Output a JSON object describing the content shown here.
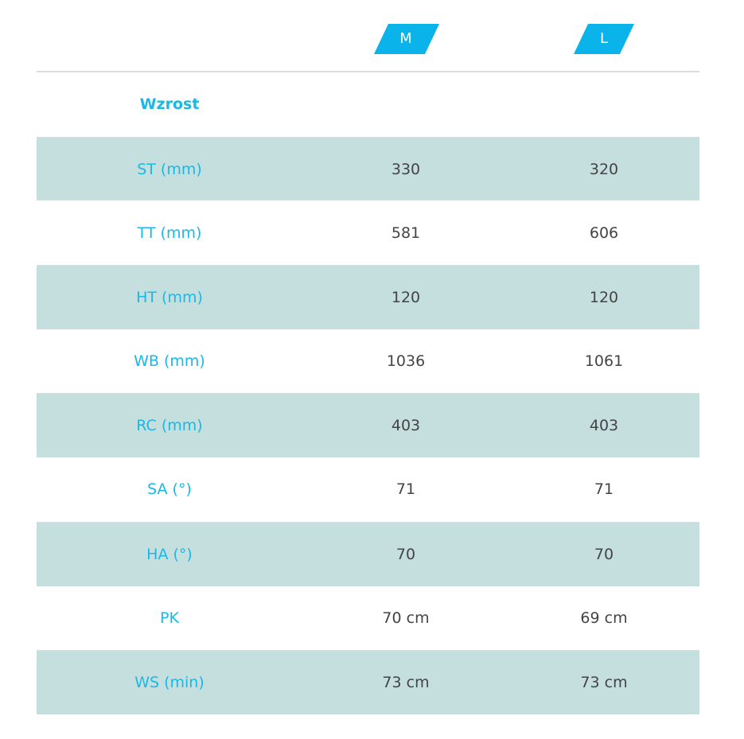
{
  "accent_color": "#0ab4ea",
  "row_highlight_color": "#c5dfdf",
  "sizes": [
    "M",
    "L"
  ],
  "rows": [
    {
      "label": "Wzrost",
      "m": "",
      "l": ""
    },
    {
      "label": "ST (mm)",
      "m": "330",
      "l": "320"
    },
    {
      "label": "TT (mm)",
      "m": "581",
      "l": "606"
    },
    {
      "label": "HT (mm)",
      "m": "120",
      "l": "120"
    },
    {
      "label": "WB (mm)",
      "m": "1036",
      "l": "1061"
    },
    {
      "label": "RC (mm)",
      "m": "403",
      "l": "403"
    },
    {
      "label": "SA (°)",
      "m": "71",
      "l": "71"
    },
    {
      "label": "HA (°)",
      "m": "70",
      "l": "70"
    },
    {
      "label": "PK",
      "m": "70 cm",
      "l": "69 cm"
    },
    {
      "label": "WS (min)",
      "m": "73 cm",
      "l": "73 cm"
    }
  ]
}
